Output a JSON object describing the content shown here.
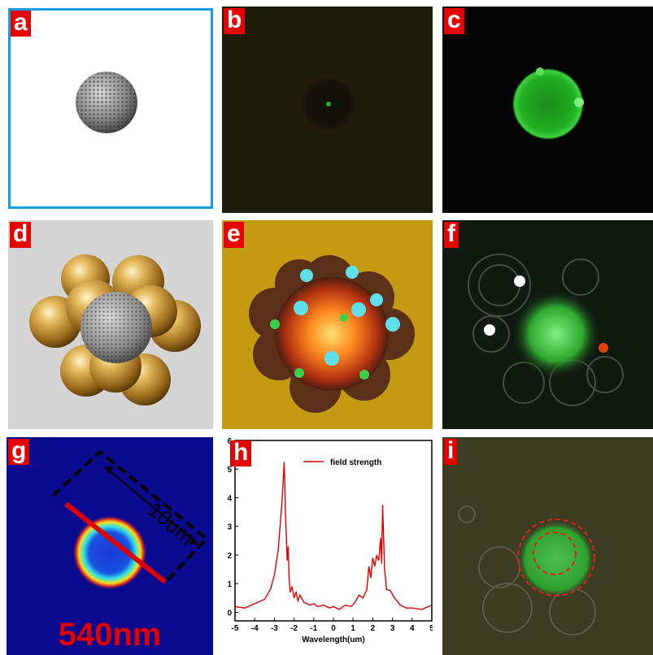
{
  "panels": {
    "a": {
      "label": "a"
    },
    "b": {
      "label": "b"
    },
    "c": {
      "label": "c"
    },
    "d": {
      "label": "d"
    },
    "e": {
      "label": "e"
    },
    "f": {
      "label": "f"
    },
    "g": {
      "label": "g",
      "scale_text": "10um",
      "wavelength_text": "540nm"
    },
    "h": {
      "label": "h"
    },
    "i": {
      "label": "i"
    }
  },
  "chart_data": {
    "type": "line",
    "xlabel": "Wavelength(um)",
    "ylabel": "",
    "xlim": [
      -5,
      5
    ],
    "ylim": [
      -0.3,
      6
    ],
    "xticks": [
      -5,
      -4,
      -3,
      -2,
      -1,
      0,
      1,
      2,
      3,
      4,
      5
    ],
    "yticks": [
      0,
      1,
      2,
      3,
      4,
      5,
      6
    ],
    "legend_position": "top-right",
    "series": [
      {
        "name": "field strength",
        "color": "#e00000",
        "x": [
          -5,
          -4.5,
          -4,
          -3.5,
          -3.2,
          -3.0,
          -2.8,
          -2.6,
          -2.5,
          -2.45,
          -2.35,
          -2.3,
          -2.25,
          -2.2,
          -2.1,
          -2.0,
          -1.9,
          -1.8,
          -1.7,
          -1.5,
          -1.2,
          -1.0,
          -0.8,
          -0.5,
          -0.2,
          0,
          0.3,
          0.6,
          0.9,
          1.1,
          1.3,
          1.5,
          1.7,
          1.8,
          1.9,
          2.0,
          2.1,
          2.2,
          2.3,
          2.4,
          2.45,
          2.5,
          2.6,
          2.7,
          2.9,
          3.1,
          3.4,
          3.7,
          4.0,
          4.5,
          5
        ],
        "y": [
          0.2,
          0.15,
          0.3,
          0.45,
          0.8,
          1.3,
          2.2,
          4.0,
          5.25,
          3.8,
          1.8,
          2.3,
          1.2,
          0.7,
          0.9,
          0.5,
          0.7,
          0.4,
          0.6,
          0.35,
          0.25,
          0.3,
          0.2,
          0.25,
          0.15,
          0.2,
          0.1,
          0.25,
          0.2,
          0.35,
          0.6,
          0.5,
          0.8,
          1.6,
          1.2,
          1.9,
          1.6,
          2.0,
          1.8,
          2.6,
          1.7,
          3.75,
          1.5,
          0.8,
          0.75,
          0.5,
          0.25,
          0.15,
          0.15,
          0.1,
          0.25
        ]
      }
    ]
  }
}
